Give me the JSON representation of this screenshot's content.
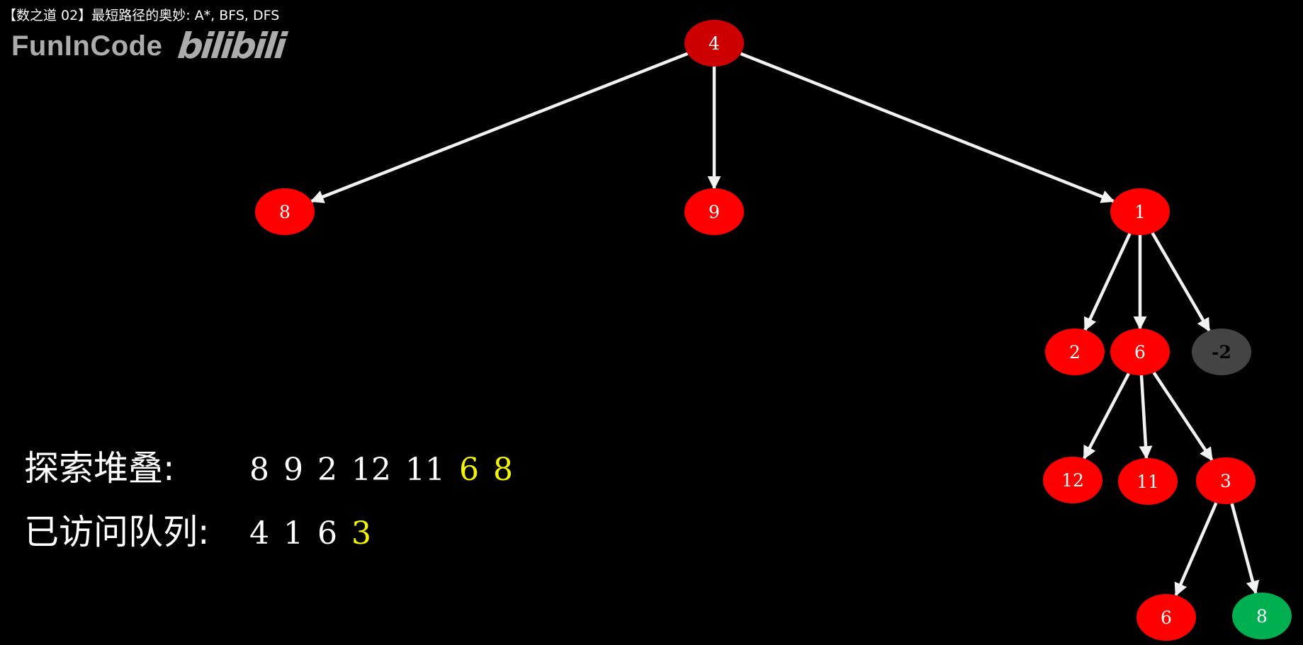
{
  "video_title": "【数之道 02】最短路径的奥妙: A*, BFS, DFS",
  "watermark": {
    "channel": "FunInCode",
    "site": "bilibili"
  },
  "colors": {
    "node_default": "#ff0000",
    "node_root": "#cc0000",
    "node_pruned": "#444444",
    "node_goal": "#00b050",
    "edge": "#f2f2f2",
    "highlight_text": "#f5f500",
    "text": "#ffffff",
    "background": "#000000"
  },
  "tree": {
    "nodes": [
      {
        "id": "n-root",
        "label": "4",
        "state": "root"
      },
      {
        "id": "n-8a",
        "label": "8",
        "state": "default"
      },
      {
        "id": "n-9",
        "label": "9",
        "state": "default"
      },
      {
        "id": "n-1",
        "label": "1",
        "state": "default"
      },
      {
        "id": "n-2",
        "label": "2",
        "state": "default"
      },
      {
        "id": "n-6a",
        "label": "6",
        "state": "default"
      },
      {
        "id": "n-neg2",
        "label": "-2",
        "state": "pruned"
      },
      {
        "id": "n-12",
        "label": "12",
        "state": "default"
      },
      {
        "id": "n-11",
        "label": "11",
        "state": "default"
      },
      {
        "id": "n-3",
        "label": "3",
        "state": "default"
      },
      {
        "id": "n-6b",
        "label": "6",
        "state": "default"
      },
      {
        "id": "n-8b",
        "label": "8",
        "state": "goal"
      }
    ],
    "edges": [
      {
        "from": "n-root",
        "to": "n-8a"
      },
      {
        "from": "n-root",
        "to": "n-9"
      },
      {
        "from": "n-root",
        "to": "n-1"
      },
      {
        "from": "n-1",
        "to": "n-2"
      },
      {
        "from": "n-1",
        "to": "n-6a"
      },
      {
        "from": "n-1",
        "to": "n-neg2"
      },
      {
        "from": "n-6a",
        "to": "n-12"
      },
      {
        "from": "n-6a",
        "to": "n-11"
      },
      {
        "from": "n-6a",
        "to": "n-3"
      },
      {
        "from": "n-3",
        "to": "n-6b"
      },
      {
        "from": "n-3",
        "to": "n-8b"
      }
    ]
  },
  "explore_stack": {
    "label": "探索堆叠:",
    "items": [
      {
        "value": "8",
        "highlight": false
      },
      {
        "value": "9",
        "highlight": false
      },
      {
        "value": "2",
        "highlight": false
      },
      {
        "value": "12",
        "highlight": false
      },
      {
        "value": "11",
        "highlight": false
      },
      {
        "value": "6",
        "highlight": true
      },
      {
        "value": "8",
        "highlight": true
      }
    ]
  },
  "visited_queue": {
    "label": "已访问队列:",
    "items": [
      {
        "value": "4",
        "highlight": false
      },
      {
        "value": "1",
        "highlight": false
      },
      {
        "value": "6",
        "highlight": false
      },
      {
        "value": "3",
        "highlight": true
      }
    ]
  }
}
